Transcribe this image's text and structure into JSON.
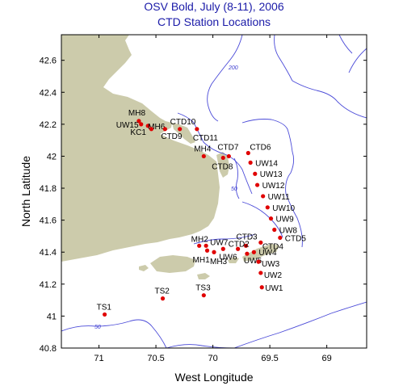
{
  "title_line1": "OSV Bold, July (8-11), 2006",
  "title_line2": "CTD Station Locations",
  "xlabel": "West Longitude",
  "ylabel": "North Latitude",
  "x_ticks": [
    "71",
    "70.5",
    "70",
    "69.5",
    "69"
  ],
  "y_ticks": [
    "42.6",
    "42.4",
    "42.2",
    "42",
    "41.8",
    "41.6",
    "41.4",
    "41.2",
    "41",
    "40.8"
  ],
  "contour_labels": [
    "200",
    "50",
    "50"
  ],
  "colors": {
    "land": "#cccbab",
    "contour": "#4a4ad8",
    "station": "#e00000",
    "title": "#1a1aa8"
  },
  "stations": [
    {
      "name": "MH8",
      "lon": 70.65,
      "lat": 42.22
    },
    {
      "name": "UW15",
      "lon": 70.63,
      "lat": 42.2
    },
    {
      "name": "MH6",
      "lon": 70.57,
      "lat": 42.19
    },
    {
      "name": "KC1",
      "lon": 70.54,
      "lat": 42.17
    },
    {
      "name": "CTD9",
      "lon": 70.42,
      "lat": 42.17
    },
    {
      "name": "CTD10",
      "lon": 70.29,
      "lat": 42.17
    },
    {
      "name": "CTD11",
      "lon": 70.14,
      "lat": 42.17
    },
    {
      "name": "MH4",
      "lon": 70.08,
      "lat": 42.0
    },
    {
      "name": "CTD7",
      "lon": 69.86,
      "lat": 42.0
    },
    {
      "name": "CTD8",
      "lon": 69.91,
      "lat": 41.99
    },
    {
      "name": "CTD6",
      "lon": 69.69,
      "lat": 42.02
    },
    {
      "name": "UW14",
      "lon": 69.67,
      "lat": 41.96
    },
    {
      "name": "UW13",
      "lon": 69.63,
      "lat": 41.89
    },
    {
      "name": "UW12",
      "lon": 69.61,
      "lat": 41.82
    },
    {
      "name": "UW11",
      "lon": 69.56,
      "lat": 41.75
    },
    {
      "name": "UW10",
      "lon": 69.52,
      "lat": 41.68
    },
    {
      "name": "UW9",
      "lon": 69.49,
      "lat": 41.61
    },
    {
      "name": "UW8",
      "lon": 69.46,
      "lat": 41.54
    },
    {
      "name": "CTD5",
      "lon": 69.41,
      "lat": 41.49
    },
    {
      "name": "CTD4",
      "lon": 69.58,
      "lat": 41.46
    },
    {
      "name": "CTD3",
      "lon": 69.71,
      "lat": 41.44
    },
    {
      "name": "CTD2",
      "lon": 69.78,
      "lat": 41.42
    },
    {
      "name": "UW7",
      "lon": 70.06,
      "lat": 41.44
    },
    {
      "name": "MH2",
      "lon": 70.12,
      "lat": 41.44
    },
    {
      "name": "MH1",
      "lon": 70.05,
      "lat": 41.41
    },
    {
      "name": "MH3",
      "lon": 69.99,
      "lat": 41.4
    },
    {
      "name": "UW6",
      "lon": 69.91,
      "lat": 41.42
    },
    {
      "name": "UW4",
      "lon": 69.64,
      "lat": 41.4
    },
    {
      "name": "UW5",
      "lon": 69.7,
      "lat": 41.39
    },
    {
      "name": "UW3",
      "lon": 69.6,
      "lat": 41.34
    },
    {
      "name": "UW2",
      "lon": 69.58,
      "lat": 41.27
    },
    {
      "name": "UW1",
      "lon": 69.57,
      "lat": 41.18
    },
    {
      "name": "TS3",
      "lon": 70.08,
      "lat": 41.13
    },
    {
      "name": "TS2",
      "lon": 70.44,
      "lat": 41.11
    },
    {
      "name": "TS1",
      "lon": 70.95,
      "lat": 41.01
    }
  ]
}
